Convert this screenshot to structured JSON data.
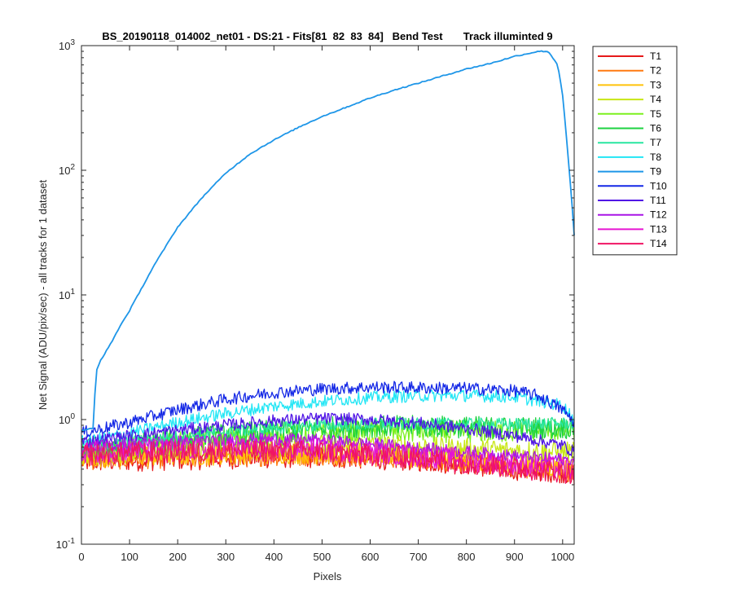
{
  "chart_data": {
    "type": "line",
    "title": "BS_20190118_014002_net01 - DS:21 - Fits[81  82  83  84]   Bend Test       Track illuminted 9",
    "xlabel": "Pixels",
    "ylabel": "Net Signal (ADU/pix/sec) - all tracks for 1 dataset",
    "xlim": [
      0,
      1024
    ],
    "ylim": [
      0.1,
      1000
    ],
    "yscale": "log",
    "xticks": [
      0,
      100,
      200,
      300,
      400,
      500,
      600,
      700,
      800,
      900,
      1000
    ],
    "yticks": [
      {
        "value": 0.1,
        "base": "10",
        "exp": "-1"
      },
      {
        "value": 1,
        "base": "10",
        "exp": "0"
      },
      {
        "value": 10,
        "base": "10",
        "exp": "1"
      },
      {
        "value": 100,
        "base": "10",
        "exp": "2"
      },
      {
        "value": 1000,
        "base": "10",
        "exp": "3"
      }
    ],
    "grid": false,
    "legend_position": "outside-right",
    "series": [
      {
        "name": "T1",
        "color": "#e6191a",
        "x": [
          0,
          100,
          200,
          300,
          400,
          500,
          600,
          700,
          800,
          900,
          1000,
          1024
        ],
        "values": [
          0.46,
          0.47,
          0.48,
          0.49,
          0.5,
          0.5,
          0.49,
          0.47,
          0.44,
          0.4,
          0.38,
          0.36
        ]
      },
      {
        "name": "T2",
        "color": "#ff7a10",
        "x": [
          0,
          100,
          200,
          300,
          400,
          500,
          600,
          700,
          800,
          900,
          1000,
          1024
        ],
        "values": [
          0.48,
          0.49,
          0.5,
          0.51,
          0.52,
          0.52,
          0.51,
          0.49,
          0.46,
          0.42,
          0.4,
          0.38
        ]
      },
      {
        "name": "T3",
        "color": "#ffc20a",
        "x": [
          0,
          100,
          200,
          300,
          400,
          500,
          600,
          700,
          800,
          900,
          1000,
          1024
        ],
        "values": [
          0.5,
          0.51,
          0.52,
          0.53,
          0.54,
          0.54,
          0.53,
          0.51,
          0.48,
          0.44,
          0.41,
          0.39
        ]
      },
      {
        "name": "T4",
        "color": "#c8e614",
        "x": [
          0,
          100,
          200,
          300,
          400,
          500,
          600,
          700,
          800,
          900,
          1000,
          1024
        ],
        "values": [
          0.52,
          0.55,
          0.58,
          0.6,
          0.62,
          0.62,
          0.62,
          0.6,
          0.58,
          0.56,
          0.55,
          0.54
        ]
      },
      {
        "name": "T5",
        "color": "#7cf01e",
        "x": [
          0,
          100,
          200,
          300,
          400,
          500,
          600,
          700,
          800,
          900,
          1000,
          1024
        ],
        "values": [
          0.55,
          0.6,
          0.65,
          0.7,
          0.75,
          0.78,
          0.8,
          0.8,
          0.8,
          0.8,
          0.82,
          0.82
        ]
      },
      {
        "name": "T6",
        "color": "#1ed241",
        "x": [
          0,
          100,
          200,
          300,
          400,
          500,
          600,
          700,
          800,
          900,
          1000,
          1024
        ],
        "values": [
          0.58,
          0.63,
          0.7,
          0.76,
          0.82,
          0.86,
          0.88,
          0.88,
          0.87,
          0.86,
          0.86,
          0.86
        ]
      },
      {
        "name": "T7",
        "color": "#28e6a0",
        "x": [
          0,
          100,
          200,
          300,
          400,
          500,
          600,
          700,
          800,
          900,
          1000,
          1024
        ],
        "values": [
          0.6,
          0.66,
          0.73,
          0.8,
          0.86,
          0.9,
          0.92,
          0.92,
          0.92,
          0.92,
          0.93,
          0.94
        ]
      },
      {
        "name": "T8",
        "color": "#22e6f5",
        "x": [
          0,
          100,
          200,
          300,
          400,
          500,
          600,
          700,
          800,
          900,
          1000,
          1024
        ],
        "values": [
          0.66,
          0.78,
          0.95,
          1.12,
          1.28,
          1.4,
          1.5,
          1.55,
          1.56,
          1.52,
          1.3,
          1.0
        ]
      },
      {
        "name": "T9",
        "color": "#1e96e8",
        "x": [
          0,
          25,
          30,
          40,
          60,
          80,
          100,
          150,
          200,
          250,
          300,
          350,
          400,
          450,
          500,
          550,
          600,
          650,
          700,
          750,
          800,
          850,
          900,
          950,
          970,
          990,
          1000,
          1010,
          1020,
          1024
        ],
        "values": [
          0.82,
          0.85,
          2.4,
          3.0,
          4.0,
          5.6,
          7.5,
          17,
          35,
          60,
          95,
          135,
          175,
          220,
          270,
          320,
          380,
          440,
          500,
          570,
          650,
          720,
          820,
          900,
          900,
          700,
          400,
          150,
          50,
          30
        ]
      },
      {
        "name": "T10",
        "color": "#1428e6",
        "x": [
          0,
          100,
          200,
          300,
          400,
          500,
          600,
          700,
          800,
          900,
          950,
          1000,
          1024
        ],
        "values": [
          0.78,
          0.95,
          1.2,
          1.45,
          1.65,
          1.76,
          1.82,
          1.8,
          1.78,
          1.7,
          1.55,
          1.2,
          0.95
        ]
      },
      {
        "name": "T11",
        "color": "#5014e6",
        "x": [
          0,
          100,
          200,
          300,
          400,
          500,
          600,
          700,
          800,
          900,
          1000,
          1024
        ],
        "values": [
          0.66,
          0.74,
          0.82,
          0.9,
          0.98,
          1.02,
          1.0,
          0.94,
          0.85,
          0.74,
          0.62,
          0.55
        ]
      },
      {
        "name": "T12",
        "color": "#a914e6",
        "x": [
          0,
          100,
          200,
          300,
          400,
          500,
          600,
          700,
          800,
          900,
          1000,
          1024
        ],
        "values": [
          0.6,
          0.64,
          0.67,
          0.69,
          0.7,
          0.68,
          0.64,
          0.59,
          0.55,
          0.51,
          0.48,
          0.46
        ]
      },
      {
        "name": "T13",
        "color": "#e614d2",
        "x": [
          0,
          100,
          200,
          300,
          400,
          500,
          600,
          700,
          800,
          900,
          1000,
          1024
        ],
        "values": [
          0.55,
          0.57,
          0.58,
          0.59,
          0.59,
          0.58,
          0.55,
          0.51,
          0.48,
          0.44,
          0.41,
          0.4
        ]
      },
      {
        "name": "T14",
        "color": "#f01464",
        "x": [
          0,
          100,
          200,
          300,
          400,
          500,
          600,
          700,
          800,
          900,
          1000,
          1024
        ],
        "values": [
          0.52,
          0.54,
          0.55,
          0.56,
          0.56,
          0.55,
          0.52,
          0.49,
          0.45,
          0.41,
          0.38,
          0.37
        ]
      }
    ]
  }
}
